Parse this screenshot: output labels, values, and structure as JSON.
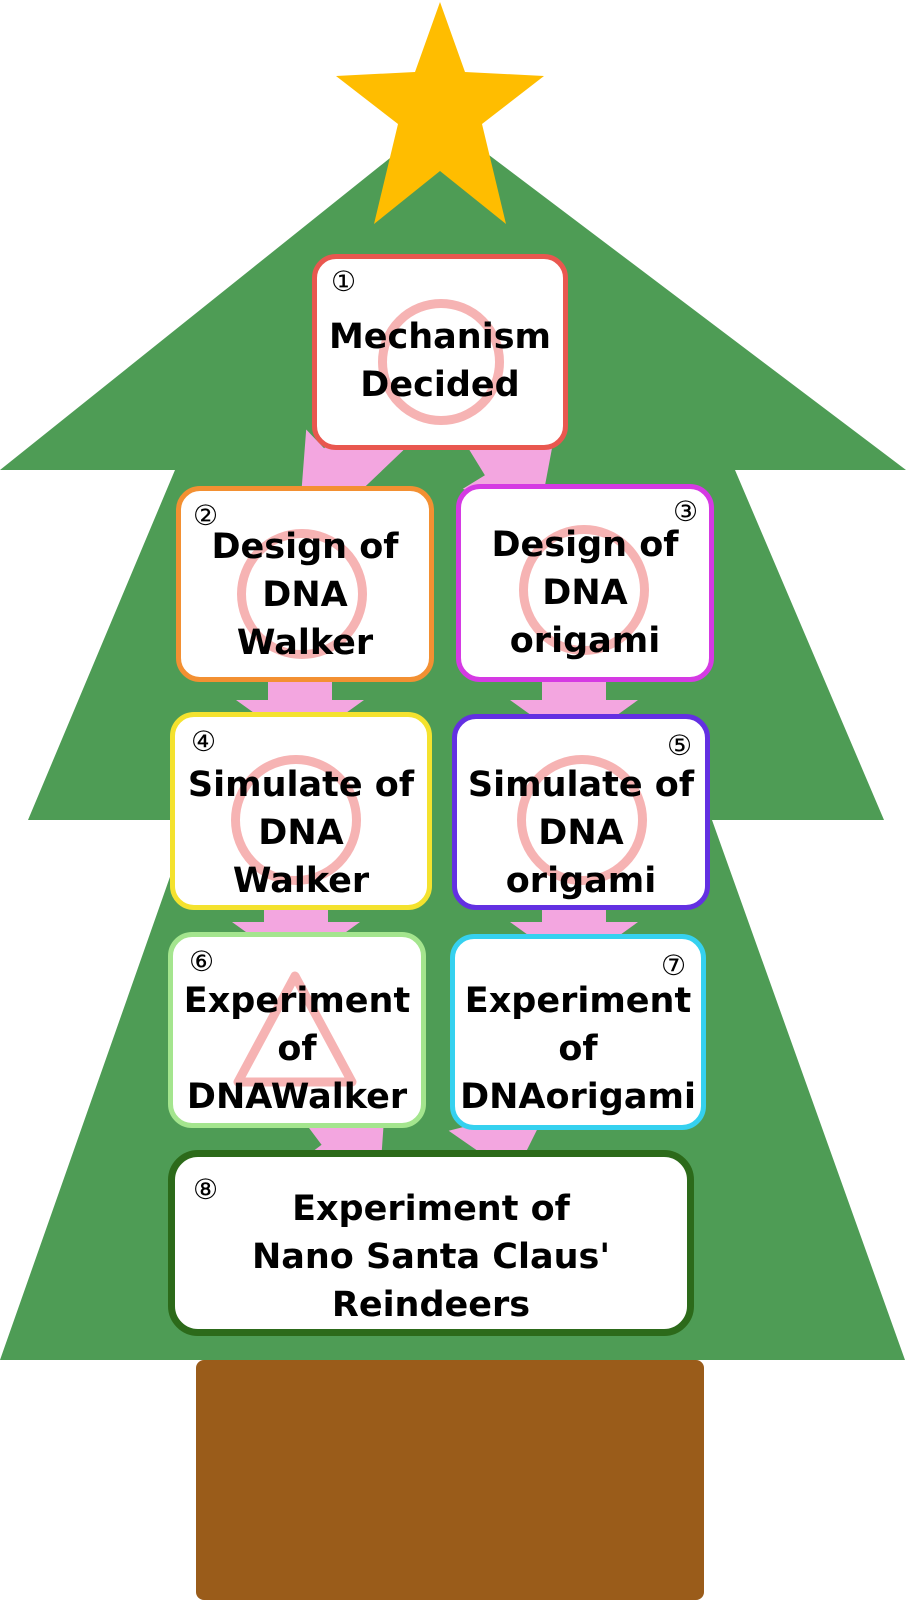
{
  "colors": {
    "tree": "#4e9c55",
    "trunk": "#9a5c1a",
    "star": "#ffbd00",
    "arrow": "#f3a6e0",
    "mark": "#f6b3b3"
  },
  "steps": [
    {
      "number": "①",
      "label": "Mechanism\nDecided",
      "status": "circle",
      "border": "#e9574f"
    },
    {
      "number": "②",
      "label": "Design of\nDNA\nWalker",
      "status": "circle",
      "border": "#f39032"
    },
    {
      "number": "③",
      "label": "Design of\nDNA\norigami",
      "status": "circle",
      "border": "#d53ae3"
    },
    {
      "number": "④",
      "label": "Simulate of\nDNA\nWalker",
      "status": "circle",
      "border": "#f4e22e"
    },
    {
      "number": "⑤",
      "label": "Simulate of\nDNA\norigami",
      "status": "circle",
      "border": "#6330e2"
    },
    {
      "number": "⑥",
      "label": "Experiment\nof\nDNAWalker",
      "status": "triangle",
      "border": "#a4e58e"
    },
    {
      "number": "⑦",
      "label": "Experiment\nof\nDNAorigami",
      "status": "none",
      "border": "#35d1ef"
    },
    {
      "number": "⑧",
      "label": "Experiment of\nNano Santa Claus'\nReindeers",
      "status": "none",
      "border": "#2c6a1a"
    }
  ]
}
